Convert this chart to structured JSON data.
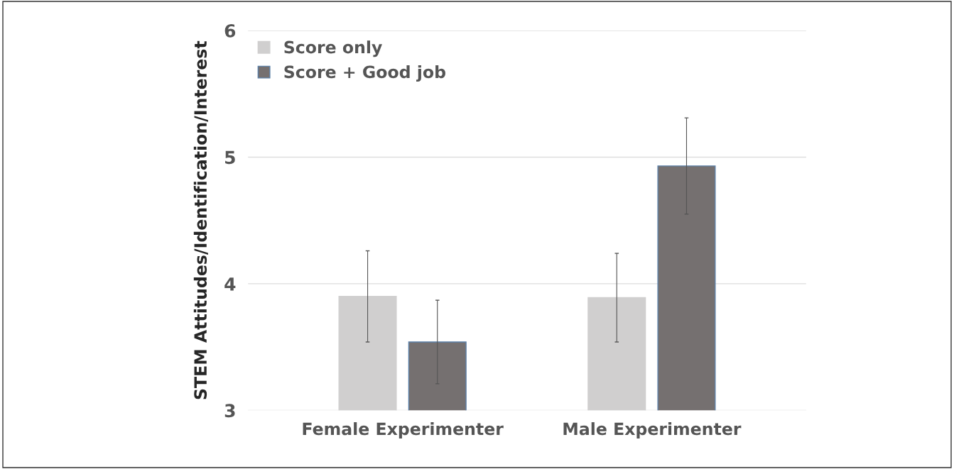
{
  "chart_data": {
    "type": "bar",
    "ylabel": "STEM Attitudes/Identification/Interest",
    "categories": [
      "Female Experimenter",
      "Male Experimenter"
    ],
    "series": [
      {
        "name": "Score only",
        "color": "#d0cfcf",
        "values": [
          3.9,
          3.89
        ],
        "errors": [
          0.36,
          0.35
        ]
      },
      {
        "name": "Score + Good job",
        "color": "#757070",
        "values": [
          3.54,
          4.93
        ],
        "errors": [
          0.33,
          0.38
        ]
      }
    ],
    "ylim": [
      3,
      6
    ],
    "yticks": [
      3,
      4,
      5,
      6
    ],
    "grid": "y",
    "legend": "top left"
  }
}
